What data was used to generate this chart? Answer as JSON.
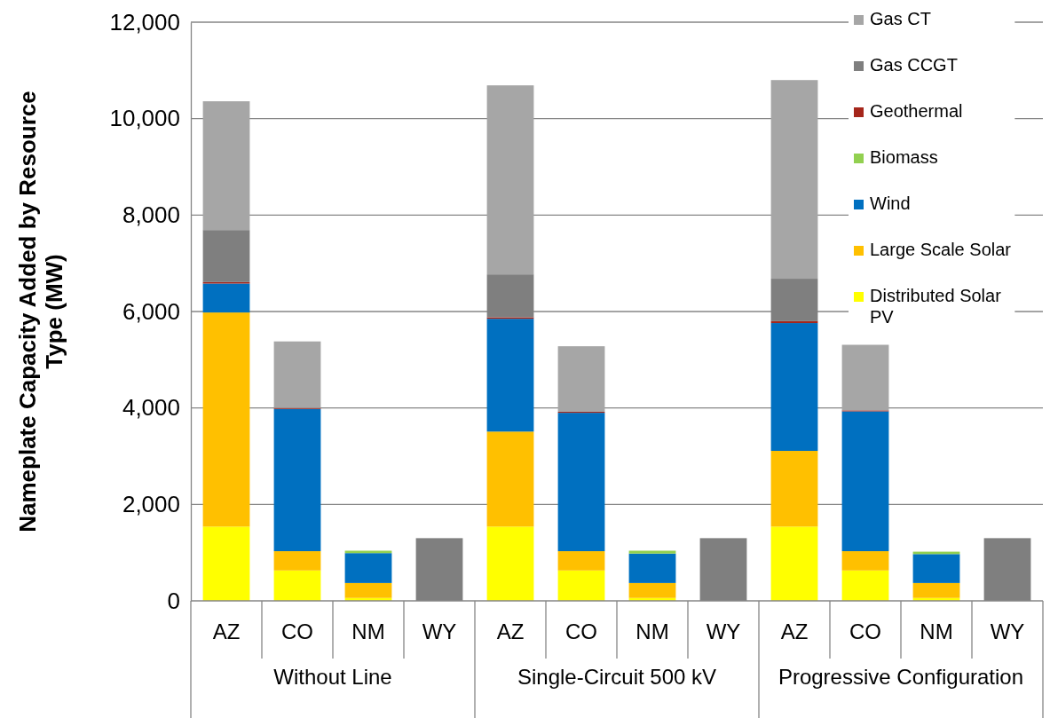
{
  "chart_data": {
    "type": "bar",
    "stacked": true,
    "ylabel": "Nameplate Capacity Added by Resource Type (MW)",
    "categories": [
      "AZ",
      "CO",
      "NM",
      "WY",
      "AZ",
      "CO",
      "NM",
      "WY",
      "AZ",
      "CO",
      "NM",
      "WY"
    ],
    "annotations": [
      "Without Line",
      "Single-Circuit 500 kV",
      "Progressive Configuration"
    ],
    "series": [
      {
        "name": "Distributed Solar PV",
        "color": "#ffff00",
        "values": [
          1540,
          630,
          60,
          0,
          1540,
          630,
          60,
          0,
          1540,
          630,
          60,
          0
        ]
      },
      {
        "name": "Large Scale Solar",
        "color": "#ffc000",
        "values": [
          4440,
          400,
          310,
          0,
          1970,
          400,
          310,
          0,
          1570,
          400,
          310,
          0
        ]
      },
      {
        "name": "Wind",
        "color": "#0070c0",
        "values": [
          600,
          2950,
          620,
          0,
          2340,
          2870,
          610,
          0,
          2650,
          2900,
          600,
          0
        ]
      },
      {
        "name": "Biomass",
        "color": "#92d050",
        "values": [
          0,
          0,
          50,
          0,
          0,
          0,
          60,
          0,
          0,
          0,
          50,
          0
        ]
      },
      {
        "name": "Geothermal",
        "color": "#a5261b",
        "values": [
          30,
          20,
          0,
          0,
          30,
          20,
          0,
          0,
          40,
          20,
          0,
          0
        ]
      },
      {
        "name": "Gas CCGT",
        "color": "#7f7f7f",
        "values": [
          1080,
          0,
          0,
          1300,
          890,
          0,
          0,
          1300,
          880,
          0,
          0,
          1300
        ]
      },
      {
        "name": "Gas CT",
        "color": "#a6a6a6",
        "values": [
          2670,
          1380,
          0,
          0,
          3920,
          1360,
          0,
          0,
          4120,
          1360,
          0,
          0
        ]
      }
    ],
    "ylim": [
      0,
      12000
    ],
    "yticks": [
      {
        "value": 0,
        "label": "0"
      },
      {
        "value": 2000,
        "label": "2,000"
      },
      {
        "value": 4000,
        "label": "4,000"
      },
      {
        "value": 6000,
        "label": "6,000"
      },
      {
        "value": 8000,
        "label": "8,000"
      },
      {
        "value": 10000,
        "label": "10,000"
      },
      {
        "value": 12000,
        "label": "12,000"
      }
    ],
    "grid": "y",
    "legend": "top right"
  }
}
